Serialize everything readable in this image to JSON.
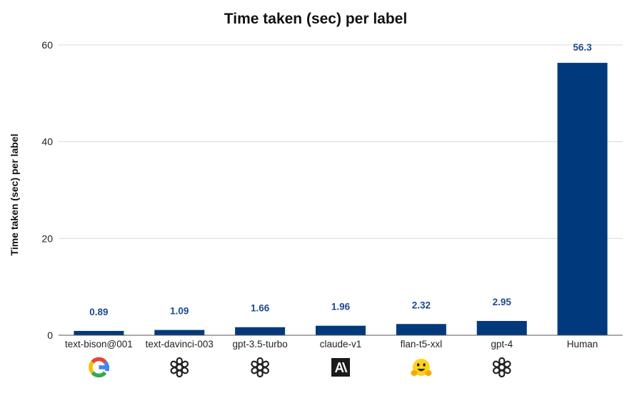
{
  "chart_data": {
    "type": "bar",
    "title": "Time taken (sec) per label",
    "xlabel": "",
    "ylabel": "Time taken (sec) per label",
    "ylim": [
      0,
      60
    ],
    "yticks": [
      0,
      20,
      40,
      60
    ],
    "grid": true,
    "bar_color": "#003a7d",
    "label_color": "#1f4a8c",
    "categories": [
      "text-bison@001",
      "text-davinci-003",
      "gpt-3.5-turbo",
      "claude-v1",
      "flan-t5-xxl",
      "gpt-4",
      "Human"
    ],
    "values": [
      0.89,
      1.09,
      1.66,
      1.96,
      2.32,
      2.95,
      56.3
    ],
    "data_labels": [
      "0.89",
      "1.09",
      "1.66",
      "1.96",
      "2.32",
      "2.95",
      "56.3"
    ],
    "logos": [
      "google-logo",
      "openai-logo",
      "openai-logo",
      "anthropic-logo",
      "huggingface-logo",
      "openai-logo",
      "none"
    ]
  }
}
